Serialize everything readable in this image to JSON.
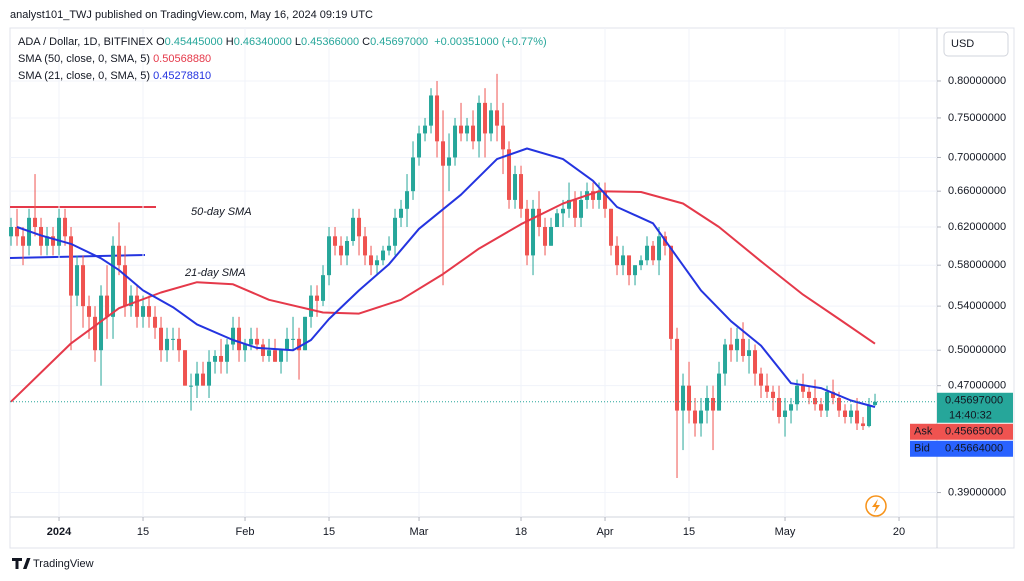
{
  "header": {
    "publish_line": "analyst101_TWJ published on TradingView.com, May 16, 2024 09:19 UTC"
  },
  "footer": {
    "brand": "TradingView"
  },
  "chart_data": {
    "type": "candlestick",
    "symbol": "ADA / Dollar, 1D, BITFINEX",
    "ohlc_legend": [
      {
        "key": "O",
        "text": "0.45445000"
      },
      {
        "key": "H",
        "text": "0.46340000"
      },
      {
        "key": "L",
        "text": "0.45366000"
      },
      {
        "key": "C",
        "text": "0.45697000"
      }
    ],
    "change": "+0.00351000 (+0.77%)",
    "currency": "USD",
    "up_color": "#26a69a",
    "down_color": "#ef5350",
    "log_scale": true,
    "grid": true,
    "open": [
      0.61,
      0.62,
      0.61,
      0.6,
      0.63,
      0.62,
      0.6,
      0.61,
      0.6,
      0.63,
      0.61,
      0.55,
      0.58,
      0.54,
      0.53,
      0.5,
      0.55,
      0.53,
      0.6,
      0.58,
      0.54,
      0.55,
      0.53,
      0.54,
      0.53,
      0.52,
      0.5,
      0.51,
      0.51,
      0.5,
      0.47,
      0.47,
      0.48,
      0.47,
      0.49,
      0.495,
      0.49,
      0.505,
      0.52,
      0.5,
      0.505,
      0.51,
      0.505,
      0.495,
      0.5,
      0.49,
      0.5,
      0.51,
      0.51,
      0.5,
      0.53,
      0.55,
      0.545,
      0.57,
      0.61,
      0.6,
      0.59,
      0.605,
      0.63,
      0.61,
      0.59,
      0.58,
      0.585,
      0.595,
      0.6,
      0.63,
      0.64,
      0.66,
      0.7,
      0.73,
      0.74,
      0.78,
      0.72,
      0.69,
      0.7,
      0.74,
      0.73,
      0.74,
      0.72,
      0.77,
      0.73,
      0.76,
      0.74,
      0.71,
      0.65,
      0.68,
      0.64,
      0.59,
      0.64,
      0.62,
      0.6,
      0.62,
      0.635,
      0.64,
      0.65,
      0.63,
      0.65,
      0.66,
      0.65,
      0.66,
      0.64,
      0.6,
      0.58,
      0.59,
      0.57,
      0.58,
      0.585,
      0.6,
      0.585,
      0.61,
      0.6,
      0.51,
      0.45,
      0.47,
      0.45,
      0.44,
      0.45,
      0.46,
      0.45,
      0.48,
      0.505,
      0.5,
      0.51,
      0.495,
      0.5,
      0.48,
      0.47,
      0.465,
      0.46,
      0.445,
      0.45,
      0.455,
      0.47,
      0.465,
      0.46,
      0.455,
      0.45,
      0.465,
      0.46,
      0.45,
      0.445,
      0.45,
      0.44,
      0.438,
      0.45445
    ],
    "high": [
      0.63,
      0.64,
      0.62,
      0.64,
      0.68,
      0.63,
      0.62,
      0.62,
      0.64,
      0.64,
      0.62,
      0.59,
      0.59,
      0.55,
      0.54,
      0.56,
      0.58,
      0.61,
      0.625,
      0.6,
      0.56,
      0.56,
      0.55,
      0.55,
      0.54,
      0.53,
      0.52,
      0.52,
      0.52,
      0.5,
      0.48,
      0.49,
      0.49,
      0.5,
      0.5,
      0.51,
      0.51,
      0.53,
      0.53,
      0.51,
      0.52,
      0.52,
      0.51,
      0.51,
      0.51,
      0.5,
      0.52,
      0.53,
      0.52,
      0.53,
      0.56,
      0.56,
      0.58,
      0.62,
      0.62,
      0.61,
      0.61,
      0.64,
      0.64,
      0.62,
      0.6,
      0.59,
      0.6,
      0.61,
      0.64,
      0.65,
      0.68,
      0.72,
      0.74,
      0.75,
      0.79,
      0.8,
      0.76,
      0.73,
      0.75,
      0.77,
      0.75,
      0.76,
      0.78,
      0.79,
      0.77,
      0.81,
      0.77,
      0.72,
      0.69,
      0.69,
      0.65,
      0.65,
      0.66,
      0.63,
      0.63,
      0.64,
      0.65,
      0.67,
      0.66,
      0.66,
      0.67,
      0.67,
      0.67,
      0.67,
      0.64,
      0.61,
      0.6,
      0.59,
      0.58,
      0.59,
      0.61,
      0.605,
      0.62,
      0.615,
      0.6,
      0.52,
      0.48,
      0.49,
      0.46,
      0.46,
      0.47,
      0.47,
      0.49,
      0.51,
      0.52,
      0.52,
      0.525,
      0.51,
      0.505,
      0.485,
      0.48,
      0.47,
      0.47,
      0.46,
      0.46,
      0.475,
      0.48,
      0.47,
      0.475,
      0.46,
      0.47,
      0.475,
      0.465,
      0.455,
      0.455,
      0.46,
      0.445,
      0.46,
      0.4634
    ],
    "low": [
      0.6,
      0.6,
      0.58,
      0.59,
      0.61,
      0.59,
      0.59,
      0.59,
      0.59,
      0.6,
      0.5,
      0.54,
      0.52,
      0.51,
      0.49,
      0.47,
      0.51,
      0.51,
      0.57,
      0.53,
      0.53,
      0.52,
      0.52,
      0.52,
      0.51,
      0.49,
      0.49,
      0.5,
      0.49,
      0.47,
      0.45,
      0.46,
      0.47,
      0.46,
      0.48,
      0.48,
      0.48,
      0.5,
      0.49,
      0.49,
      0.5,
      0.5,
      0.49,
      0.49,
      0.49,
      0.48,
      0.49,
      0.5,
      0.475,
      0.5,
      0.52,
      0.53,
      0.54,
      0.56,
      0.59,
      0.58,
      0.58,
      0.6,
      0.59,
      0.58,
      0.57,
      0.57,
      0.58,
      0.59,
      0.59,
      0.62,
      0.62,
      0.65,
      0.69,
      0.72,
      0.73,
      0.7,
      0.56,
      0.66,
      0.69,
      0.72,
      0.72,
      0.71,
      0.7,
      0.7,
      0.72,
      0.72,
      0.68,
      0.64,
      0.64,
      0.63,
      0.58,
      0.57,
      0.61,
      0.59,
      0.6,
      0.62,
      0.62,
      0.63,
      0.62,
      0.62,
      0.64,
      0.64,
      0.64,
      0.63,
      0.59,
      0.57,
      0.57,
      0.56,
      0.56,
      0.575,
      0.58,
      0.58,
      0.57,
      0.59,
      0.5,
      0.4,
      0.42,
      0.44,
      0.43,
      0.43,
      0.44,
      0.42,
      0.45,
      0.47,
      0.49,
      0.49,
      0.49,
      0.48,
      0.47,
      0.46,
      0.46,
      0.45,
      0.44,
      0.43,
      0.44,
      0.45,
      0.46,
      0.455,
      0.45,
      0.445,
      0.445,
      0.455,
      0.445,
      0.44,
      0.44,
      0.435,
      0.435,
      0.437,
      0.45366
    ],
    "close": [
      0.62,
      0.61,
      0.6,
      0.63,
      0.62,
      0.6,
      0.61,
      0.6,
      0.63,
      0.61,
      0.55,
      0.58,
      0.54,
      0.53,
      0.5,
      0.55,
      0.53,
      0.6,
      0.58,
      0.54,
      0.55,
      0.53,
      0.54,
      0.53,
      0.52,
      0.5,
      0.51,
      0.51,
      0.5,
      0.47,
      0.47,
      0.48,
      0.47,
      0.49,
      0.495,
      0.49,
      0.505,
      0.52,
      0.5,
      0.505,
      0.51,
      0.505,
      0.495,
      0.5,
      0.49,
      0.5,
      0.51,
      0.51,
      0.5,
      0.53,
      0.55,
      0.545,
      0.57,
      0.61,
      0.6,
      0.59,
      0.605,
      0.63,
      0.61,
      0.59,
      0.58,
      0.585,
      0.595,
      0.6,
      0.63,
      0.64,
      0.66,
      0.7,
      0.73,
      0.74,
      0.78,
      0.72,
      0.69,
      0.7,
      0.74,
      0.73,
      0.74,
      0.72,
      0.77,
      0.73,
      0.76,
      0.74,
      0.71,
      0.65,
      0.68,
      0.64,
      0.59,
      0.64,
      0.62,
      0.6,
      0.62,
      0.635,
      0.64,
      0.65,
      0.63,
      0.65,
      0.66,
      0.65,
      0.66,
      0.64,
      0.6,
      0.58,
      0.59,
      0.57,
      0.58,
      0.585,
      0.6,
      0.585,
      0.61,
      0.6,
      0.51,
      0.45,
      0.47,
      0.45,
      0.44,
      0.45,
      0.46,
      0.45,
      0.48,
      0.505,
      0.5,
      0.51,
      0.495,
      0.5,
      0.48,
      0.47,
      0.465,
      0.46,
      0.445,
      0.45,
      0.455,
      0.47,
      0.465,
      0.46,
      0.455,
      0.45,
      0.465,
      0.46,
      0.45,
      0.445,
      0.45,
      0.44,
      0.438,
      0.454,
      0.45697
    ],
    "series": [
      {
        "name": "SMA (50, close, 0, SMA, 5)",
        "value_label": "0.50568880",
        "color": "#e5394a",
        "x": [
          0,
          10,
          18,
          25,
          31,
          37,
          43,
          52,
          58,
          65,
          72,
          78,
          85,
          92,
          98,
          105,
          112,
          118,
          125,
          132,
          138,
          144
        ],
        "values": [
          0.457,
          0.506,
          0.538,
          0.553,
          0.563,
          0.561,
          0.546,
          0.534,
          0.533,
          0.546,
          0.571,
          0.597,
          0.623,
          0.646,
          0.66,
          0.659,
          0.646,
          0.62,
          0.584,
          0.551,
          0.528,
          0.5056888
        ]
      },
      {
        "name": "SMA (21, close, 0, SMA, 5)",
        "value_label": "0.45278810",
        "color": "#2434e0",
        "x": [
          1,
          5,
          10,
          15,
          18,
          22,
          27,
          31,
          37,
          41,
          47,
          50,
          53,
          58,
          63,
          68,
          75,
          81,
          86,
          92,
          97,
          101,
          107,
          110,
          115,
          120,
          125,
          130,
          135,
          140,
          144
        ],
        "values": [
          0.62,
          0.611,
          0.602,
          0.587,
          0.575,
          0.555,
          0.539,
          0.523,
          0.509,
          0.502,
          0.5,
          0.509,
          0.528,
          0.555,
          0.581,
          0.618,
          0.656,
          0.698,
          0.711,
          0.698,
          0.672,
          0.642,
          0.624,
          0.597,
          0.555,
          0.526,
          0.504,
          0.472,
          0.468,
          0.458,
          0.4527881
        ]
      }
    ],
    "annotations": [
      {
        "text": "50-day SMA",
        "color": "#e5394a"
      },
      {
        "text": "21-day SMA",
        "color": "#2434e0"
      }
    ],
    "last_price": {
      "value": 0.45697,
      "label": "0.45697000",
      "countdown": "14:40:32"
    },
    "ask": {
      "name": "Ask",
      "value": 0.45665,
      "label": "0.45665000"
    },
    "bid": {
      "name": "Bid",
      "value": 0.45664,
      "label": "0.45664000"
    },
    "xlim": [
      -0.17,
      154.33
    ],
    "xticks": [
      {
        "value": 8,
        "label": "2024"
      },
      {
        "value": 22,
        "label": "15"
      },
      {
        "value": 39,
        "label": "Feb"
      },
      {
        "value": 53,
        "label": "15"
      },
      {
        "value": 68,
        "label": "Mar"
      },
      {
        "value": 85,
        "label": "18"
      },
      {
        "value": 99,
        "label": "Apr"
      },
      {
        "value": 113,
        "label": "15"
      },
      {
        "value": 129,
        "label": "May"
      },
      {
        "value": 148,
        "label": "20"
      }
    ],
    "ylim": [
      0.3737,
      0.8775
    ],
    "yticks": [
      {
        "value": 0.39,
        "label": "0.39000000"
      },
      {
        "value": 0.47,
        "label": "0.47000000"
      },
      {
        "value": 0.5,
        "label": "0.50000000"
      },
      {
        "value": 0.54,
        "label": "0.54000000"
      },
      {
        "value": 0.58,
        "label": "0.58000000"
      },
      {
        "value": 0.62,
        "label": "0.62000000"
      },
      {
        "value": 0.66,
        "label": "0.66000000"
      },
      {
        "value": 0.7,
        "label": "0.70000000"
      },
      {
        "value": 0.75,
        "label": "0.75000000"
      },
      {
        "value": 0.8,
        "label": "0.80000000"
      }
    ]
  }
}
